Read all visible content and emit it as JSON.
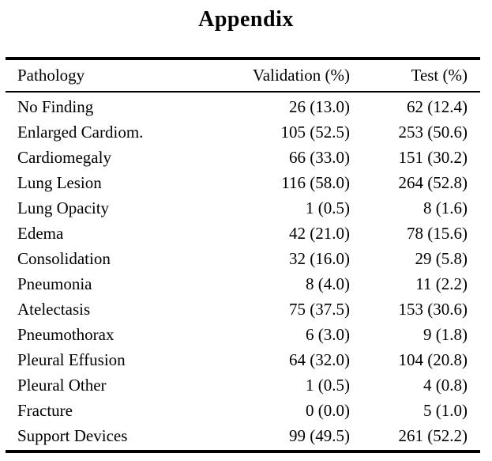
{
  "page": {
    "title": "Appendix"
  },
  "colors": {
    "text": "#000000",
    "background": "#ffffff",
    "rule": "#000000"
  },
  "table": {
    "columns": [
      {
        "label": "Pathology",
        "align": "left"
      },
      {
        "label": "Validation (%)",
        "align": "right"
      },
      {
        "label": "Test (%)",
        "align": "right"
      }
    ],
    "rows": [
      {
        "pathology": "No Finding",
        "validation": "26 (13.0)",
        "test": "62 (12.4)"
      },
      {
        "pathology": "Enlarged Cardiom.",
        "validation": "105 (52.5)",
        "test": "253 (50.6)"
      },
      {
        "pathology": "Cardiomegaly",
        "validation": "66 (33.0)",
        "test": "151 (30.2)"
      },
      {
        "pathology": "Lung Lesion",
        "validation": "116 (58.0)",
        "test": "264 (52.8)"
      },
      {
        "pathology": "Lung Opacity",
        "validation": "1 (0.5)",
        "test": "8 (1.6)"
      },
      {
        "pathology": "Edema",
        "validation": "42 (21.0)",
        "test": "78 (15.6)"
      },
      {
        "pathology": "Consolidation",
        "validation": "32 (16.0)",
        "test": "29 (5.8)"
      },
      {
        "pathology": "Pneumonia",
        "validation": "8 (4.0)",
        "test": "11 (2.2)"
      },
      {
        "pathology": "Atelectasis",
        "validation": "75 (37.5)",
        "test": "153 (30.6)"
      },
      {
        "pathology": "Pneumothorax",
        "validation": "6 (3.0)",
        "test": "9 (1.8)"
      },
      {
        "pathology": "Pleural Effusion",
        "validation": "64 (32.0)",
        "test": "104 (20.8)"
      },
      {
        "pathology": "Pleural Other",
        "validation": "1 (0.5)",
        "test": "4 (0.8)"
      },
      {
        "pathology": "Fracture",
        "validation": "0 (0.0)",
        "test": "5 (1.0)"
      },
      {
        "pathology": "Support Devices",
        "validation": "99 (49.5)",
        "test": "261 (52.2)"
      }
    ]
  }
}
